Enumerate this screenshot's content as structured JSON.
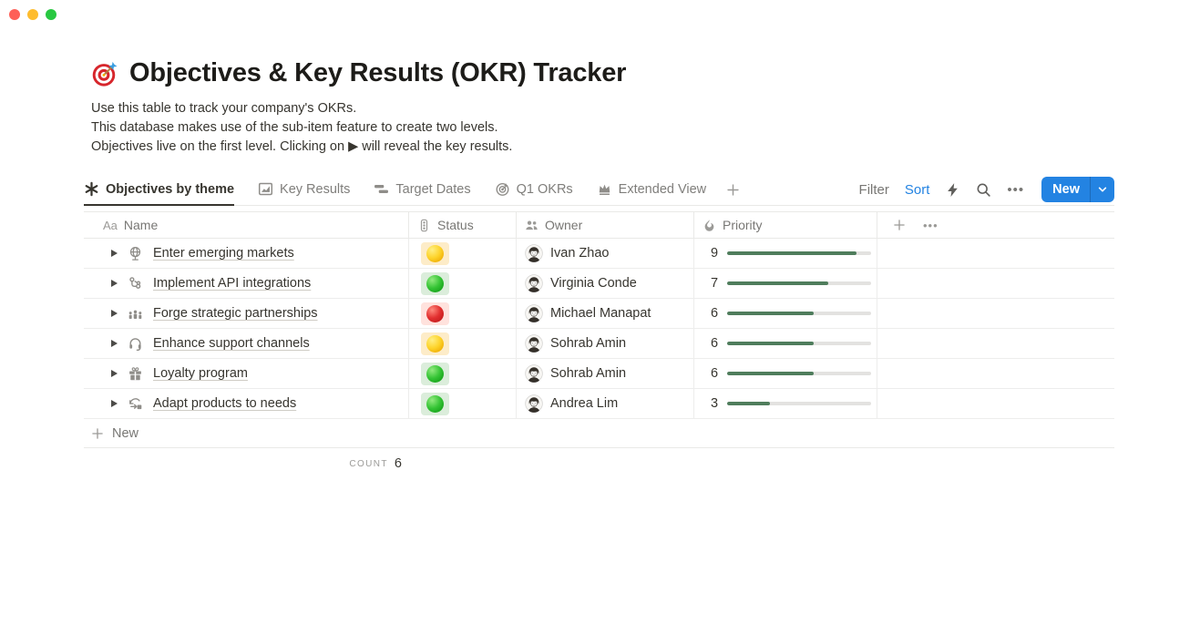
{
  "window": {
    "controls": [
      "close",
      "minimize",
      "zoom"
    ]
  },
  "page": {
    "icon": "target-dart-icon",
    "title": "Objectives & Key Results (OKR) Tracker",
    "description_lines": [
      "Use this table to track your company's OKRs.",
      "This database makes use of the sub-item feature to create two levels.",
      "Objectives live on the first level. Clicking on ▶ will reveal the key results."
    ]
  },
  "views": {
    "tabs": [
      {
        "label": "Objectives by theme",
        "icon": "asterisk-icon",
        "active": true
      },
      {
        "label": "Key Results",
        "icon": "chart-icon",
        "active": false
      },
      {
        "label": "Target Dates",
        "icon": "board-icon",
        "active": false
      },
      {
        "label": "Q1 OKRs",
        "icon": "target-icon",
        "active": false
      },
      {
        "label": "Extended View",
        "icon": "crown-icon",
        "active": false
      }
    ],
    "add_view_icon": "plus-icon"
  },
  "toolbar": {
    "filter_label": "Filter",
    "sort_label": "Sort",
    "icons": [
      "lightning-icon",
      "search-icon",
      "more-icon"
    ],
    "new_button": {
      "label": "New",
      "icon": "chevron-down-icon"
    }
  },
  "table": {
    "columns": [
      {
        "label": "Name",
        "icon": "text-icon"
      },
      {
        "label": "Status",
        "icon": "trafficlight-icon"
      },
      {
        "label": "Owner",
        "icon": "people-icon"
      },
      {
        "label": "Priority",
        "icon": "flame-icon"
      }
    ],
    "header_extra_icons": [
      "plus-icon",
      "more-icon"
    ],
    "priority_max": 10,
    "rows": [
      {
        "icon": "globe-icon",
        "name": "Enter emerging markets",
        "status": "yellow",
        "owner": "Ivan Zhao",
        "priority": 9
      },
      {
        "icon": "workflow-icon",
        "name": "Implement API integrations",
        "status": "green",
        "owner": "Virginia Conde",
        "priority": 7
      },
      {
        "icon": "group-icon",
        "name": "Forge strategic partnerships",
        "status": "red",
        "owner": "Michael Manapat",
        "priority": 6
      },
      {
        "icon": "headset-icon",
        "name": "Enhance support channels",
        "status": "yellow",
        "owner": "Sohrab Amin",
        "priority": 6
      },
      {
        "icon": "gift-icon",
        "name": "Loyalty program",
        "status": "green",
        "owner": "Sohrab Amin",
        "priority": 6
      },
      {
        "icon": "sync-icon",
        "name": "Adapt products to needs",
        "status": "green",
        "owner": "Andrea Lim",
        "priority": 3
      }
    ],
    "new_row_label": "New",
    "aggregate": {
      "label": "COUNT",
      "value": 6
    }
  },
  "colors": {
    "accent_blue": "#2383e2",
    "text_dark": "#37352f",
    "text_gray": "#787774",
    "border": "#e9e9e7",
    "priority_bar_green": "#4f7d5c",
    "status_yellow_bg": "#fdecc8",
    "status_green_bg": "#dbeddb",
    "status_red_bg": "#ffe2dd",
    "traffic_red": "#fe5f57",
    "traffic_yellow": "#febc2e",
    "traffic_green": "#28c841"
  }
}
